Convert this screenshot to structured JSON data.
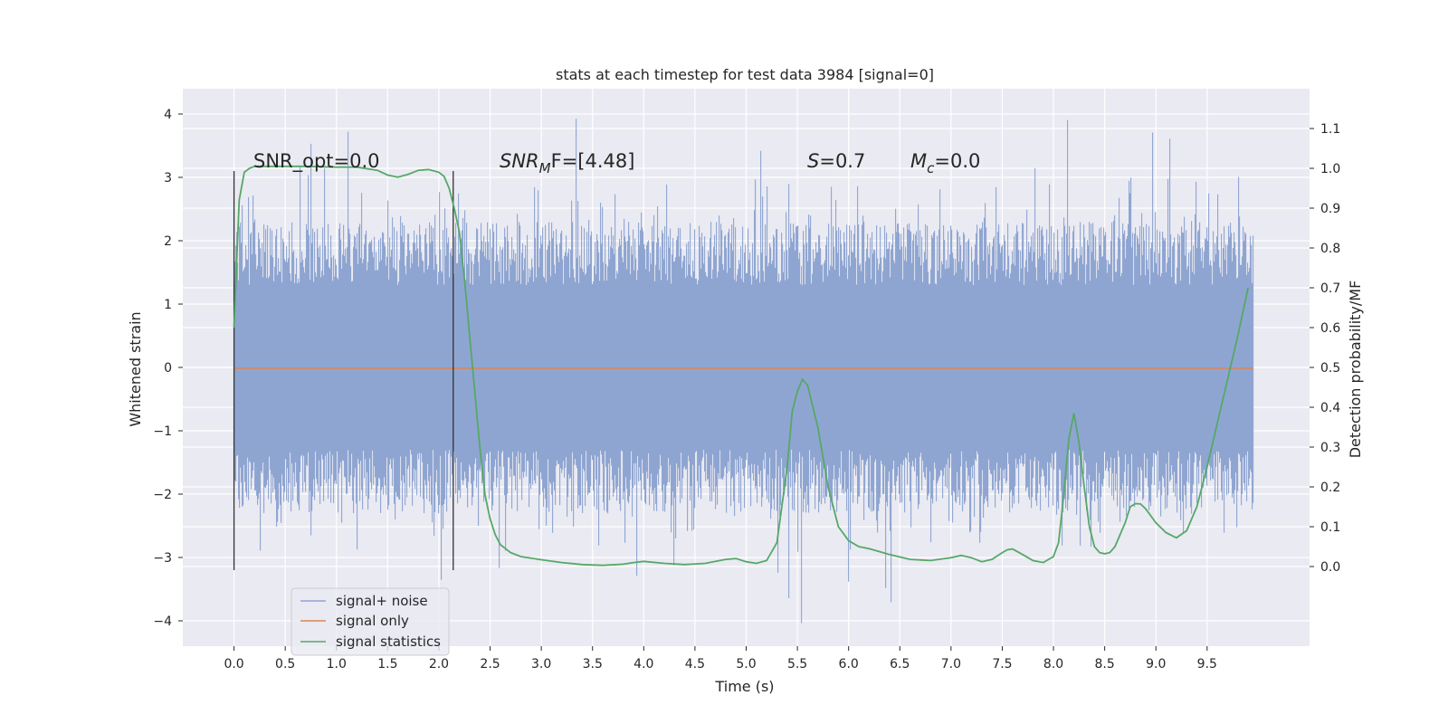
{
  "chart_data": {
    "type": "line",
    "title": "stats at each timestep for test data 3984 [signal=0]",
    "xlabel": "Time (s)",
    "ylabel_left": "Whitened strain",
    "ylabel_right": "Detection probability/MF",
    "xlim": [
      -0.5,
      10.5
    ],
    "ylim_left": [
      -4.4,
      4.4
    ],
    "ylim_right": [
      -0.2,
      1.2
    ],
    "x_ticks": [
      "0.0",
      "0.5",
      "1.0",
      "1.5",
      "2.0",
      "2.5",
      "3.0",
      "3.5",
      "4.0",
      "4.5",
      "5.0",
      "5.5",
      "6.0",
      "6.5",
      "7.0",
      "7.5",
      "8.0",
      "8.5",
      "9.0",
      "9.5"
    ],
    "y_ticks_left": [
      "4",
      "3",
      "2",
      "1",
      "0",
      "−1",
      "−2",
      "−3",
      "−4"
    ],
    "y_ticks_right": [
      "1.1",
      "1.0",
      "0.9",
      "0.8",
      "0.7",
      "0.6",
      "0.5",
      "0.4",
      "0.3",
      "0.2",
      "0.1",
      "0.0"
    ],
    "vertical_markers": [
      0.0,
      2.14
    ],
    "vertical_marker_range": [
      -3.2,
      3.1
    ],
    "annotations": {
      "snr_opt": "SNR_opt=0.0",
      "snr_mf_main": "SNR",
      "snr_mf_sub": "M",
      "snr_mf_rest": "F=[4.48]",
      "s_main": "S",
      "s_rest": "=0.7",
      "mc_main": "M",
      "mc_sub": "c",
      "mc_rest": "=0.0"
    },
    "legend": {
      "placement": "lower-left",
      "entries": [
        "signal+ noise",
        "signal only",
        "signal statistics"
      ]
    },
    "colors": {
      "noise": "#8fa5d1",
      "signal": "#dd8452",
      "stats": "#55a868",
      "marker": "#333333",
      "plot_bg": "#eaeaf2",
      "grid": "#ffffff"
    },
    "series": [
      {
        "name": "signal+ noise",
        "kind": "noise-band",
        "x_range": [
          0.0,
          9.95
        ],
        "core_amplitude": 1.3,
        "typical_peak": 2.3,
        "max_peak": 3.95,
        "min_peak": -4.05
      },
      {
        "name": "signal only",
        "x": [
          0.0,
          9.95
        ],
        "y": [
          0.0,
          0.0
        ]
      },
      {
        "name": "signal statistics",
        "x": [
          0.0,
          0.05,
          0.1,
          0.15,
          0.2,
          0.3,
          0.5,
          0.7,
          1.0,
          1.2,
          1.4,
          1.5,
          1.6,
          1.7,
          1.8,
          1.9,
          2.0,
          2.05,
          2.1,
          2.15,
          2.2,
          2.25,
          2.3,
          2.35,
          2.4,
          2.45,
          2.5,
          2.55,
          2.6,
          2.7,
          2.8,
          3.0,
          3.2,
          3.4,
          3.6,
          3.8,
          3.9,
          4.0,
          4.2,
          4.4,
          4.6,
          4.8,
          4.9,
          5.0,
          5.1,
          5.2,
          5.3,
          5.4,
          5.45,
          5.5,
          5.55,
          5.6,
          5.7,
          5.8,
          5.9,
          6.0,
          6.1,
          6.2,
          6.4,
          6.6,
          6.8,
          7.0,
          7.1,
          7.2,
          7.3,
          7.4,
          7.5,
          7.55,
          7.6,
          7.7,
          7.8,
          7.9,
          8.0,
          8.05,
          8.1,
          8.15,
          8.2,
          8.25,
          8.3,
          8.35,
          8.4,
          8.45,
          8.5,
          8.55,
          8.6,
          8.7,
          8.75,
          8.8,
          8.85,
          8.9,
          9.0,
          9.1,
          9.2,
          9.3,
          9.4,
          9.5,
          9.6,
          9.7,
          9.8,
          9.9
        ],
        "y": [
          0.6,
          0.92,
          0.99,
          1.0,
          1.005,
          1.005,
          1.005,
          1.005,
          1.003,
          1.003,
          0.995,
          0.983,
          0.978,
          0.985,
          0.995,
          0.997,
          0.99,
          0.98,
          0.95,
          0.9,
          0.84,
          0.72,
          0.58,
          0.44,
          0.3,
          0.18,
          0.12,
          0.08,
          0.055,
          0.035,
          0.025,
          0.017,
          0.01,
          0.005,
          0.003,
          0.006,
          0.01,
          0.013,
          0.008,
          0.005,
          0.008,
          0.018,
          0.02,
          0.012,
          0.008,
          0.015,
          0.06,
          0.25,
          0.39,
          0.44,
          0.47,
          0.455,
          0.35,
          0.2,
          0.1,
          0.065,
          0.05,
          0.045,
          0.03,
          0.018,
          0.015,
          0.022,
          0.028,
          0.022,
          0.012,
          0.018,
          0.035,
          0.042,
          0.044,
          0.03,
          0.015,
          0.01,
          0.025,
          0.06,
          0.18,
          0.32,
          0.385,
          0.31,
          0.2,
          0.1,
          0.05,
          0.035,
          0.032,
          0.035,
          0.05,
          0.11,
          0.15,
          0.158,
          0.157,
          0.145,
          0.11,
          0.085,
          0.072,
          0.09,
          0.15,
          0.25,
          0.36,
          0.47,
          0.58,
          0.7
        ]
      }
    ]
  }
}
